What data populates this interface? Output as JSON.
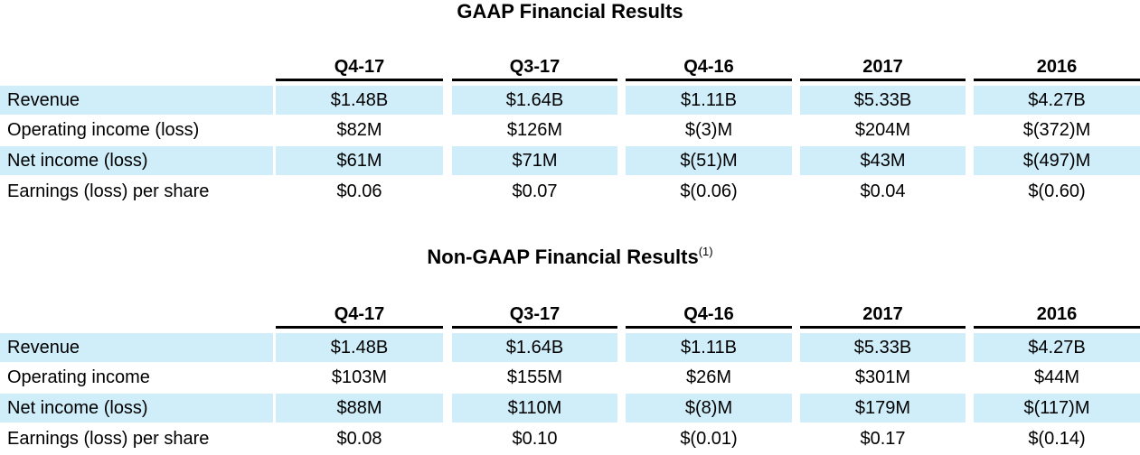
{
  "columns": [
    "Q4-17",
    "Q3-17",
    "Q4-16",
    "2017",
    "2016"
  ],
  "gaap": {
    "title": "GAAP Financial Results",
    "rows": [
      {
        "label": "Revenue",
        "values": [
          "$1.48B",
          "$1.64B",
          "$1.11B",
          "$5.33B",
          "$4.27B"
        ]
      },
      {
        "label": "Operating income (loss)",
        "values": [
          "$82M",
          "$126M",
          "$(3)M",
          "$204M",
          "$(372)M"
        ]
      },
      {
        "label": "Net income (loss)",
        "values": [
          "$61M",
          "$71M",
          "$(51)M",
          "$43M",
          "$(497)M"
        ]
      },
      {
        "label": "Earnings (loss) per share",
        "values": [
          "$0.06",
          "$0.07",
          "$(0.06)",
          "$0.04",
          "$(0.60)"
        ]
      }
    ]
  },
  "non_gaap": {
    "title": "Non-GAAP Financial Results",
    "footnote_marker": "(1)",
    "rows": [
      {
        "label": "Revenue",
        "values": [
          "$1.48B",
          "$1.64B",
          "$1.11B",
          "$5.33B",
          "$4.27B"
        ]
      },
      {
        "label": "Operating income",
        "values": [
          "$103M",
          "$155M",
          "$26M",
          "$301M",
          "$44M"
        ]
      },
      {
        "label": "Net income (loss)",
        "values": [
          "$88M",
          "$110M",
          "$(8)M",
          "$179M",
          "$(117)M"
        ]
      },
      {
        "label": "Earnings (loss) per share",
        "values": [
          "$0.08",
          "$0.10",
          "$(0.01)",
          "$0.17",
          "$(0.14)"
        ]
      }
    ]
  },
  "colors": {
    "row_shade": "#cfeefa",
    "rule": "#000000"
  }
}
